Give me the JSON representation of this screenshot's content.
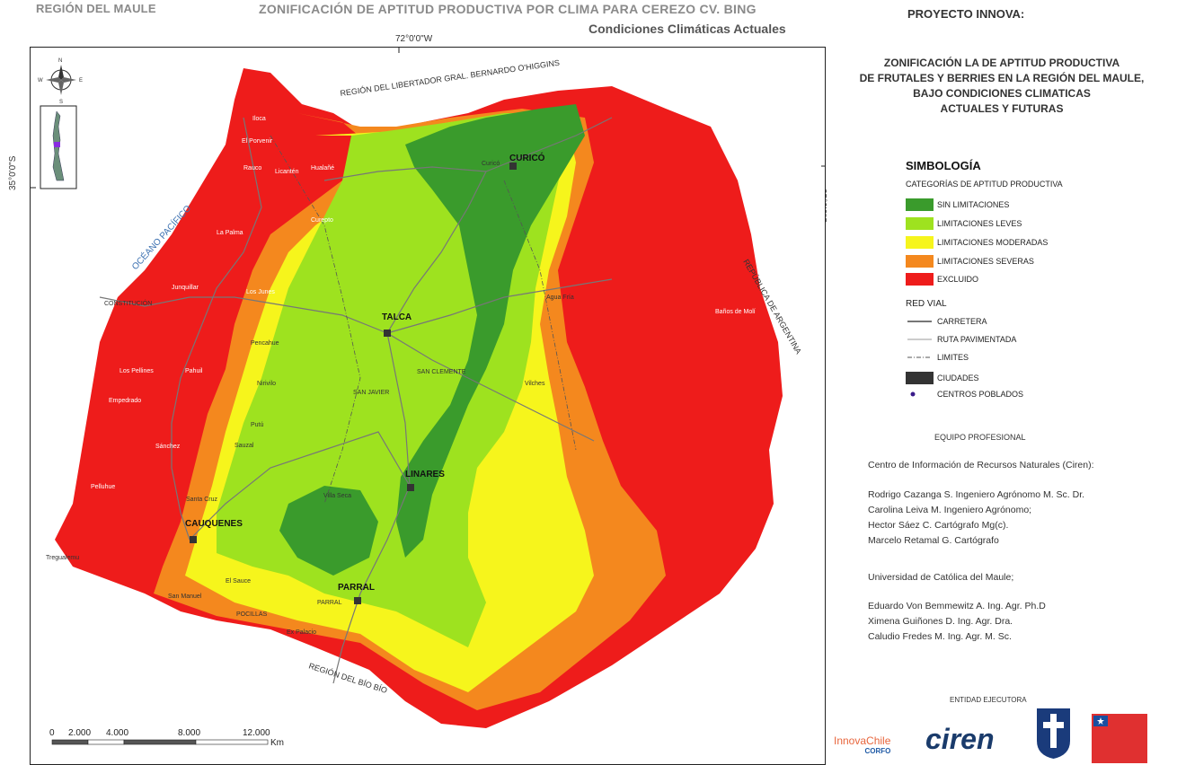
{
  "header": {
    "region": "REGIÓN DEL MAULE",
    "title": "ZONIFICACIÓN DE APTITUD PRODUCTIVA POR CLIMA PARA CEREZO CV. BING",
    "subtitle": "Condiciones Climáticas Actuales"
  },
  "coordinates": {
    "top": "72°0'0\"W",
    "left": "35°0'0\"S",
    "right": "35°0'0\"S"
  },
  "map": {
    "region_labels": {
      "north": "REGIÓN DEL LIBERTADOR GRAL. BERNARDO O'HIGGINS",
      "east": "REPÚBLICA DE ARGENTINA",
      "south": "REGIÓN DEL BÍO BÍO",
      "ocean": "OCÉANO PACÍFICO"
    },
    "cities": [
      "CURICÓ",
      "TALCA",
      "LINARES",
      "CAUQUENES",
      "PARRAL"
    ],
    "towns": [
      "Iloca",
      "El Porvenir",
      "Licantén",
      "Hualañé",
      "Curicó",
      "Rauco",
      "Licantén",
      "La Palma",
      "Curepto",
      "Junquillar",
      "Los Junes",
      "CONSTITUCIÓN",
      "Pencahue",
      "Los Pellines",
      "Empedrado",
      "Nirivilo",
      "Agua Fría",
      "Baños de Molí",
      "SAN CLEMENTE",
      "SAN JAVIER",
      "Vilches",
      "Pahuil",
      "Putú",
      "Sauzal",
      "Sánchez",
      "Pelluhue",
      "Santa Cruz",
      "Villa Seca",
      "Tregualemu",
      "El Sauce",
      "San Manuel",
      "POCILLAS",
      "PARRAL",
      "Ex Palacio"
    ],
    "scale": {
      "ticks": [
        "0",
        "2.000",
        "4.000",
        "8.000",
        "12.000"
      ],
      "unit": "Km"
    }
  },
  "legend": {
    "project_title": "PROYECTO INNOVA:",
    "project_description": "ZONIFICACIÓN LA DE APTITUD PRODUCTIVA DE FRUTALES Y BERRIES EN LA REGIÓN DEL MAULE, BAJO CONDICIONES CLIMATICAS ACTUALES Y FUTURAS",
    "project_description_lines": [
      "ZONIFICACIÓN LA DE APTITUD PRODUCTIVA",
      "DE FRUTALES Y BERRIES EN LA REGIÓN DEL MAULE,",
      "BAJO CONDICIONES CLIMATICAS",
      "ACTUALES Y FUTURAS"
    ],
    "simbologia": "SIMBOLOGÍA",
    "categories_title": "CATEGORÍAS DE APTITUD PRODUCTIVA",
    "categories": [
      {
        "label": "SIN LIMITACIONES",
        "color": "#3a9b2c"
      },
      {
        "label": "LIMITACIONES LEVES",
        "color": "#9ee21f"
      },
      {
        "label": "LIMITACIONES MODERADAS",
        "color": "#f6f51c"
      },
      {
        "label": "LIMITACIONES SEVERAS",
        "color": "#f4881e"
      },
      {
        "label": "EXCLUIDO",
        "color": "#ee1c1b"
      }
    ],
    "red_vial_title": "RED VIAL",
    "red_vial": [
      {
        "label": "CARRETERA",
        "symbol": "solid-line"
      },
      {
        "label": "RUTA PAVIMENTADA",
        "symbol": "thin-line"
      },
      {
        "label": "LIMITES",
        "symbol": "dash-dot-line"
      },
      {
        "label": "CIUDADES",
        "symbol": "dark-box"
      },
      {
        "label": "CENTROS POBLADOS",
        "symbol": "purple-dot"
      }
    ]
  },
  "team": {
    "title": "EQUIPO PROFESIONAL",
    "ciren_header": "Centro de Información de Recursos Naturales (Ciren):",
    "ciren_members": [
      "Rodrigo Cazanga S. Ingeniero Agrónomo M. Sc. Dr.",
      "Carolina Leiva M. Ingeniero Agrónomo;",
      "Hector Sáez C. Cartógrafo Mg(c).",
      "Marcelo Retamal G. Cartógrafo"
    ],
    "ucm_header": "Universidad de Católica del Maule;",
    "ucm_members": [
      "Eduardo Von Bemmewitz A. Ing. Agr. Ph.D",
      "Ximena Guiñones D.  Ing. Agr.  Dra.",
      "Caludio Fredes M.  Ing. Agr. M. Sc."
    ],
    "entidad": "ENTIDAD EJECUTORA"
  },
  "logos": {
    "innova": "InnovaChile",
    "corfo": "CORFO",
    "ciren": "ciren"
  }
}
